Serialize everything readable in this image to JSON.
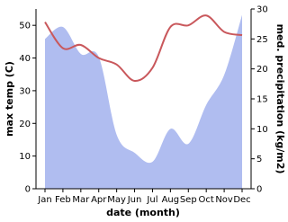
{
  "chart_data": {
    "type": "line-area",
    "x_label": "date (month)",
    "y_label": "max temp (C)",
    "y2_label": "med. precipitation (kg/m2)",
    "categories": [
      "Jan",
      "Feb",
      "Mar",
      "Apr",
      "May",
      "Jun",
      "Jul",
      "Aug",
      "Sep",
      "Oct",
      "Nov",
      "Dec"
    ],
    "series": [
      {
        "name": "max temp (C)",
        "color": "#c9585c",
        "axis": "y",
        "values": [
          51,
          43,
          44,
          40,
          38,
          33,
          37,
          49.5,
          50,
          53,
          48,
          47
        ]
      },
      {
        "name": "med. precipitation (kg/m2)",
        "color": "#b0bdf0",
        "axis": "y2",
        "values": [
          25,
          27,
          22.5,
          22,
          9,
          6,
          4.5,
          10,
          7.5,
          14,
          19,
          29
        ]
      }
    ],
    "ylim": [
      0,
      55
    ],
    "yticks": [
      0,
      10,
      20,
      30,
      40,
      50
    ],
    "y2lim": [
      0,
      30
    ],
    "y2ticks": [
      0,
      5,
      10,
      15,
      20,
      25,
      30
    ]
  }
}
